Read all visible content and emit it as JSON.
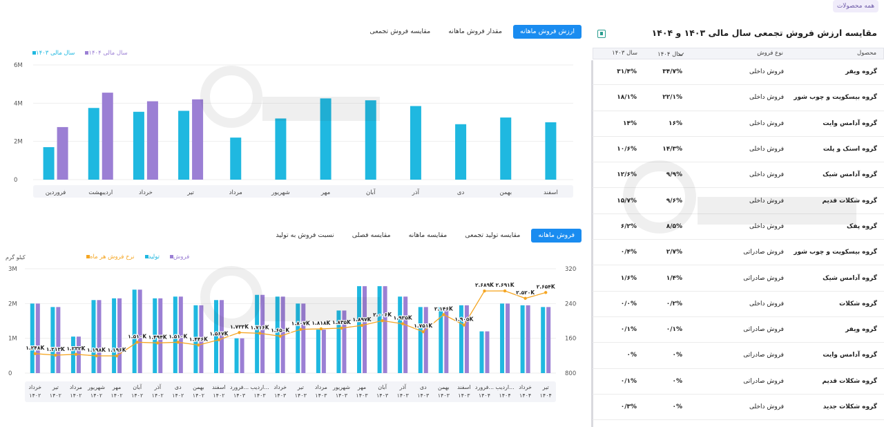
{
  "top_badge": "همه محصولات",
  "chart1_tabs": [
    "ارزش فروش ماهانه",
    "مقدار فروش ماهانه",
    "مقایسه فروش تجمعی"
  ],
  "chart2_tabs": [
    "فروش ماهانه",
    "مقایسه تولید تجمعی",
    "مقایسه ماهانه",
    "مقایسه فصلی",
    "نسبت فروش به تولید"
  ],
  "right_panel": {
    "title": "مقایسه ارزش فروش تجمعی سال مالی ۱۴۰۳ و ۱۴۰۴",
    "columns": {
      "product": "محصول",
      "sale_type": "نوع فروش",
      "y1404": "سال ۱۴۰۴",
      "y1403": "سال ۱۴۰۳"
    },
    "rows": [
      {
        "product": "گروه ویفر",
        "type": "فروش داخلی",
        "y1404": "۳۴/۷%",
        "y1403": "۳۱/۴%"
      },
      {
        "product": "گروه بیسکویت و چوب شور",
        "type": "فروش داخلی",
        "y1404": "۲۲/۱%",
        "y1403": "۱۸/۱%"
      },
      {
        "product": "گروه آدامس وایت",
        "type": "فروش داخلی",
        "y1404": "۱۶%",
        "y1403": "۱۴%"
      },
      {
        "product": "گروه اسنک و پلت",
        "type": "فروش داخلی",
        "y1404": "۱۴/۳%",
        "y1403": "۱۰/۶%"
      },
      {
        "product": "گروه آدامس شیک",
        "type": "فروش داخلی",
        "y1404": "۹/۹%",
        "y1403": "۱۲/۶%"
      },
      {
        "product": "گروه شکلات قدیم",
        "type": "فروش داخلی",
        "y1404": "۹/۶%",
        "y1403": "۱۵/۷%"
      },
      {
        "product": "گروه پفک",
        "type": "فروش داخلی",
        "y1404": "۸/۵%",
        "y1403": "۶/۲%"
      },
      {
        "product": "گروه بیسکویت و چوب شور",
        "type": "فروش صادراتی",
        "y1404": "۲/۷%",
        "y1403": "۰/۴%"
      },
      {
        "product": "گروه آدامس شیک",
        "type": "فروش صادراتی",
        "y1404": "۱/۴%",
        "y1403": "۱/۶%"
      },
      {
        "product": "گروه شکلات",
        "type": "فروش داخلی",
        "y1404": "۰/۲%",
        "y1403": "۰/۰%"
      },
      {
        "product": "گروه ویفر",
        "type": "فروش صادراتی",
        "y1404": "۰/۱%",
        "y1403": "۰/۱%"
      },
      {
        "product": "گروه آدامس وایت",
        "type": "فروش صادراتی",
        "y1404": "۰%",
        "y1403": "۰%"
      },
      {
        "product": "گروه شکلات قدیم",
        "type": "فروش صادراتی",
        "y1404": "۰%",
        "y1403": "۰/۱%"
      },
      {
        "product": "گروه شکلات جدید",
        "type": "فروش داخلی",
        "y1404": "۰%",
        "y1403": "۰/۳%"
      }
    ]
  },
  "colors": {
    "cyan": "#1fb8e0",
    "purple": "#9b7fd4",
    "orange": "#f5a623",
    "tab_active": "#1a8cf0"
  },
  "chart_data": [
    {
      "type": "bar",
      "legend": [
        "سال مالی ۱۴۰۴",
        "سال مالی ۱۴۰۳"
      ],
      "categories": [
        "فروردین",
        "اردیبهشت",
        "خرداد",
        "تیر",
        "مرداد",
        "شهریور",
        "مهر",
        "آبان",
        "آذر",
        "دی",
        "بهمن",
        "اسفند"
      ],
      "yticks": [
        "0",
        "2M",
        "4M",
        "6M"
      ],
      "ylim": [
        0,
        6000000
      ],
      "series": [
        {
          "name": "سال مالی ۱۴۰۳",
          "values": [
            1700000,
            3750000,
            3550000,
            3600000,
            2200000,
            3200000,
            4250000,
            4150000,
            3850000,
            2900000,
            3250000,
            3000000
          ]
        },
        {
          "name": "سال مالی ۱۴۰۴",
          "values": [
            2750000,
            4550000,
            4100000,
            4200000,
            null,
            null,
            null,
            null,
            null,
            null,
            null,
            null
          ]
        }
      ]
    },
    {
      "type": "bar",
      "legend": [
        "فروش",
        "تولید",
        "نرخ فروش هر ماه"
      ],
      "ylabel": "کیلو گرم",
      "yticks_left": [
        "0",
        "1M",
        "2M",
        "3M"
      ],
      "yticks_right": [
        "800",
        "1600",
        "2400",
        "3200"
      ],
      "ylim_left": [
        0,
        3000000
      ],
      "ylim_right": [
        800,
        3200
      ],
      "categories": [
        "خرداد ۱۴۰۲",
        "تیر ۱۴۰۲",
        "مرداد ۱۴۰۲",
        "شهریور ۱۴۰۲",
        "مهر ۱۴۰۲",
        "آبان ۱۴۰۲",
        "آذر ۱۴۰۲",
        "دی ۱۴۰۲",
        "بهمن ۱۴۰۲",
        "اسفند ۱۴۰۲",
        "فروردین ۱۴۰۳",
        "اردیبهشت ۱۴۰۳",
        "خرداد ۱۴۰۳",
        "تیر ۱۴۰۳",
        "مرداد ۱۴۰۳",
        "شهریور ۱۴۰۳",
        "مهر ۱۴۰۳",
        "آبان ۱۴۰۳",
        "آذر ۱۴۰۳",
        "دی ۱۴۰۳",
        "بهمن ۱۴۰۳",
        "اسفند ۱۴۰۳",
        "فروردین ۱۴۰۴",
        "اردیبهشت ۱۴۰۴",
        "خرداد ۱۴۰۴",
        "تیر ۱۴۰۴"
      ],
      "category_labels": [
        "خرداد",
        "تیر",
        "مرداد",
        "شهریور",
        "مهر",
        "آبان",
        "آذر",
        "دی",
        "بهمن",
        "اسفند",
        "فرورد...",
        "اردیب...",
        "خرداد",
        "تیر",
        "مرداد",
        "شهریور",
        "مهر",
        "آبان",
        "آذر",
        "دی",
        "بهمن",
        "اسفند",
        "فرورد...",
        "اردیب...",
        "خرداد",
        "تیر"
      ],
      "category_years": [
        "۱۴۰۲",
        "۱۴۰۲",
        "۱۴۰۲",
        "۱۴۰۲",
        "۱۴۰۲",
        "۱۴۰۲",
        "۱۴۰۲",
        "۱۴۰۲",
        "۱۴۰۲",
        "۱۴۰۲",
        "۱۴۰۳",
        "۱۴۰۳",
        "۱۴۰۳",
        "۱۴۰۳",
        "۱۴۰۳",
        "۱۴۰۳",
        "۱۴۰۳",
        "۱۴۰۳",
        "۱۴۰۳",
        "۱۴۰۳",
        "۱۴۰۳",
        "۱۴۰۳",
        "۱۴۰۴",
        "۱۴۰۴",
        "۱۴۰۴",
        "۱۴۰۴"
      ],
      "series": [
        {
          "name": "فروش",
          "values": [
            2000000,
            1900000,
            1050000,
            2100000,
            2150000,
            2400000,
            2150000,
            2200000,
            1950000,
            2100000,
            1000000,
            2250000,
            2200000,
            2000000,
            1250000,
            1800000,
            2500000,
            2500000,
            2200000,
            1900000,
            1900000,
            1950000,
            1200000,
            2000000,
            1950000,
            1900000
          ]
        },
        {
          "name": "تولید",
          "values": [
            2000000,
            1900000,
            1050000,
            2100000,
            2150000,
            2400000,
            2150000,
            2200000,
            1950000,
            2100000,
            1000000,
            2250000,
            2200000,
            2000000,
            1250000,
            1800000,
            2500000,
            2500000,
            2200000,
            1900000,
            1900000,
            1950000,
            1200000,
            2000000,
            1950000,
            1900000
          ]
        },
        {
          "name": "نرخ فروش هر ماه",
          "values": [
            1248,
            1213,
            1232,
            1198,
            1196,
            1510,
            1494,
            1510,
            1446,
            1567,
            1733,
            1716,
            1650,
            1807,
            1818,
            1835,
            1897,
            2006,
            1935,
            1751,
            2146,
            1905,
            2689,
            2691,
            2520,
            2654
          ]
        }
      ],
      "point_labels": [
        "۱.۲۴۸K",
        "۱.۲۱۳K",
        "۱.۲۳۲K",
        "۱.۱۹۸K",
        "۱.۱۹۶K",
        "۱.۵۱۰K",
        "۱.۴۹۴K",
        "۱.۵۱۰K",
        "۱.۴۴۶K",
        "۱.۵۶۷K",
        "۱.۷۳۳K",
        "۱.۷۱۶K",
        "۱.۶۵۰K",
        "۱.۸۰۷K",
        "۱.۸۱۸K",
        "۱.۸۳۵K",
        "۱.۸۹۷K",
        "۲.۰۰۶K",
        "۱.۹۳۵K",
        "۱.۷۵۱K",
        "۲.۱۴۶K",
        "۱.۹۰۵K",
        "۲.۶۸۹K",
        "۲.۶۹۱K",
        "۲.۵۲۰K",
        "۲.۶۵۴K"
      ]
    }
  ]
}
